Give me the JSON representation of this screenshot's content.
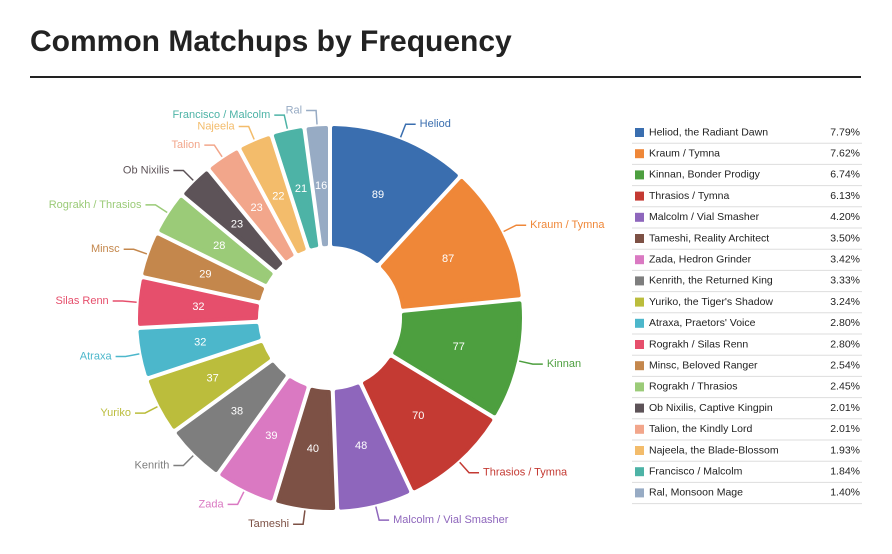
{
  "chart_data": {
    "type": "donut",
    "title": "Common Matchups by Frequency",
    "categories": [
      "Heliod",
      "Kraum / Tymna",
      "Kinnan",
      "Thrasios / Tymna",
      "Malcolm / Vial Smasher",
      "Tameshi",
      "Zada",
      "Kenrith",
      "Yuriko",
      "Atraxa",
      "Silas Renn",
      "Minsc",
      "Rograkh / Thrasios",
      "Ob Nixilis",
      "Talion",
      "Najeela",
      "Francisco / Malcolm",
      "Ral"
    ],
    "values": [
      89,
      87,
      77,
      70,
      48,
      40,
      39,
      38,
      37,
      32,
      32,
      29,
      28,
      23,
      23,
      22,
      21,
      16
    ],
    "colors": [
      "#3a6eaf",
      "#ef8738",
      "#4d9f3f",
      "#c43a33",
      "#8e66bc",
      "#7d5145",
      "#da79c2",
      "#7e7e7e",
      "#bbbd3c",
      "#4cb7cb",
      "#e64f6c",
      "#c4874c",
      "#9bcb78",
      "#5d5358",
      "#f2a68b",
      "#f3bc6b",
      "#4db3a6",
      "#97abc4"
    ],
    "legend_labels": [
      "Heliod, the Radiant Dawn",
      "Kraum / Tymna",
      "Kinnan, Bonder Prodigy",
      "Thrasios / Tymna",
      "Malcolm / Vial Smasher",
      "Tameshi, Reality Architect",
      "Zada, Hedron Grinder",
      "Kenrith, the Returned King",
      "Yuriko, the Tiger's Shadow",
      "Atraxa, Praetors' Voice",
      "Rograkh / Silas Renn",
      "Minsc, Beloved Ranger",
      "Rograkh / Thrasios",
      "Ob Nixilis, Captive Kingpin",
      "Talion, the Kindly Lord",
      "Najeela, the Blade-Blossom",
      "Francisco / Malcolm",
      "Ral, Monsoon Mage"
    ],
    "legend_shares": [
      "7.79%",
      "7.62%",
      "6.74%",
      "6.13%",
      "4.20%",
      "3.50%",
      "3.42%",
      "3.33%",
      "3.24%",
      "2.80%",
      "2.80%",
      "2.54%",
      "2.45%",
      "2.01%",
      "2.01%",
      "1.93%",
      "1.84%",
      "1.40%"
    ]
  }
}
